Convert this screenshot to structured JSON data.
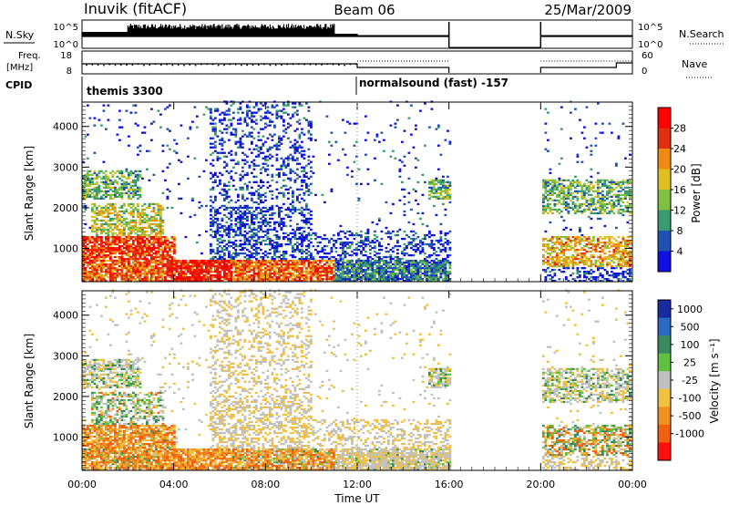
{
  "header": {
    "station": "Inuvik (fitACF)",
    "beam": "Beam 06",
    "date": "25/Mar/2009"
  },
  "strips": {
    "nsky_label": "N.Sky",
    "nsky_ticks": [
      "10^5",
      "10^0"
    ],
    "nsearch_label": "N.Search",
    "nsearch_ticks": [
      "10^5",
      "10^0"
    ],
    "freq_label_top": "Freq.",
    "freq_label_bottom": "[MHz]",
    "freq_ticks": [
      "18",
      "8"
    ],
    "nave_label": "Nave",
    "nave_ticks": [
      "60",
      "0"
    ],
    "cpid_label": "CPID",
    "cpid_programs": [
      {
        "name": "themis 3300",
        "start_hour": 0,
        "end_hour": 12
      },
      {
        "name": "normalsound (fast) -157",
        "start_hour": 12,
        "end_hour": 24
      }
    ],
    "data_gaps": [
      [
        16,
        20
      ]
    ]
  },
  "chart_data": [
    {
      "type": "heatmap",
      "name": "power",
      "ylabel": "Slant Range [km]",
      "xlabel": "",
      "ylim": [
        180,
        4600
      ],
      "y_ticks": [
        "1000",
        "2000",
        "3000",
        "4000"
      ],
      "x_ticks": [
        "00:00",
        "04:00",
        "08:00",
        "12:00",
        "16:00",
        "20:00",
        "00:00"
      ],
      "colorbar_label": "Power [dB]",
      "colorbar_ticks": [
        "4",
        "8",
        "12",
        "16",
        "20",
        "24",
        "28"
      ],
      "colors": [
        "#1010e0",
        "#2050b0",
        "#3a9a70",
        "#80c040",
        "#e0c020",
        "#f08a10",
        "#e03010",
        "#ff0000"
      ]
    },
    {
      "type": "heatmap",
      "name": "velocity",
      "ylabel": "Slant Range [km]",
      "xlabel": "Time UT",
      "ylim": [
        180,
        4600
      ],
      "y_ticks": [
        "1000",
        "2000",
        "3000",
        "4000"
      ],
      "x_ticks": [
        "00:00",
        "04:00",
        "08:00",
        "12:00",
        "16:00",
        "20:00",
        "00:00"
      ],
      "colorbar_label": "Velocity [m s⁻¹]",
      "colorbar_ticks": [
        "1000",
        "500",
        "100",
        "25",
        "-25",
        "-100",
        "-500",
        "-1000"
      ],
      "colors": [
        "#1a2aa0",
        "#2a6ac0",
        "#3a8a60",
        "#60c040",
        "#c0c0c0",
        "#f0c040",
        "#f09020",
        "#f06010",
        "#ff1010"
      ]
    }
  ]
}
